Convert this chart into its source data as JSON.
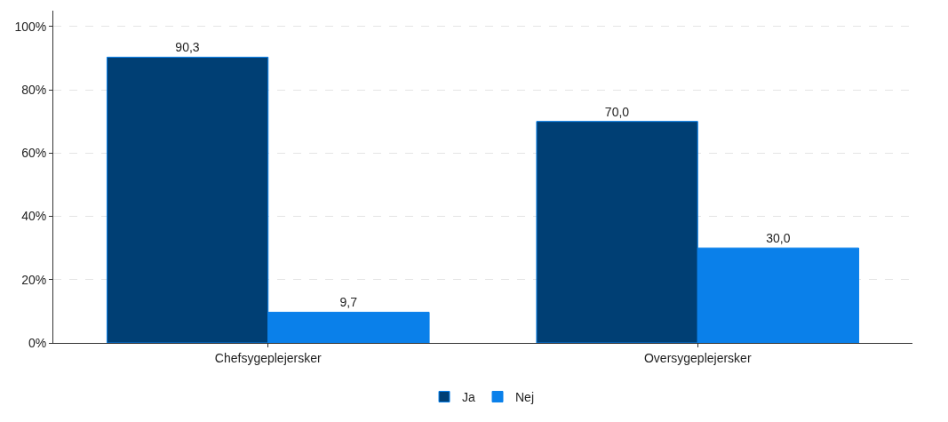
{
  "chart_data": {
    "type": "bar",
    "categories": [
      "Chefsygeplejersker",
      "Oversygeplejersker"
    ],
    "series": [
      {
        "name": "Ja",
        "color": "#003f74",
        "values": [
          90.3,
          70.0
        ],
        "value_labels": [
          "90,3",
          "70,0"
        ]
      },
      {
        "name": "Nej",
        "color": "#0a80ea",
        "values": [
          9.7,
          30.0
        ],
        "value_labels": [
          "9,7",
          "30,0"
        ]
      }
    ],
    "ylim": [
      0,
      105
    ],
    "yticks": [
      {
        "value": 0,
        "label": "0%"
      },
      {
        "value": 20,
        "label": "20%"
      },
      {
        "value": 40,
        "label": "40%"
      },
      {
        "value": 60,
        "label": "60%"
      },
      {
        "value": 80,
        "label": "80%"
      },
      {
        "value": 100,
        "label": "100%"
      }
    ],
    "grid": "y",
    "legend": "bottom"
  }
}
